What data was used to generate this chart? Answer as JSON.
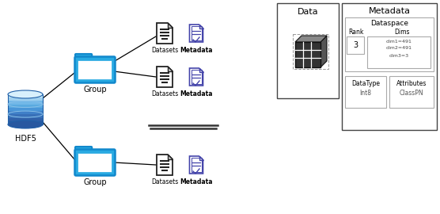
{
  "bg_color": "#ffffff",
  "hdf5_label": "HDF5",
  "group_label": "Group",
  "datasets_label": "Datasets",
  "metadata_label": "Metadata",
  "data_box_label": "Data",
  "meta_box_label": "Metadata",
  "dataspace_label": "Dataspace",
  "rank_label": "Rank",
  "dims_label": "Dims",
  "rank_val": "3",
  "dims_vals": [
    "dim1=491",
    "dim2=491",
    "dim3=3"
  ],
  "datatype_label": "DataType",
  "datatype_val": "Int8",
  "attributes_label": "Attributes",
  "attributes_val": "ClassPN",
  "folder_color": "#29aae2",
  "folder_edge": "#1188cc",
  "doc_color": "#222222",
  "doc_meta_color": "#4444aa",
  "hdf5_top": "#a8daf5",
  "hdf5_mid": "#5aabdf",
  "hdf5_bot": "#3070b8",
  "hdf5_edge": "#2060a8"
}
